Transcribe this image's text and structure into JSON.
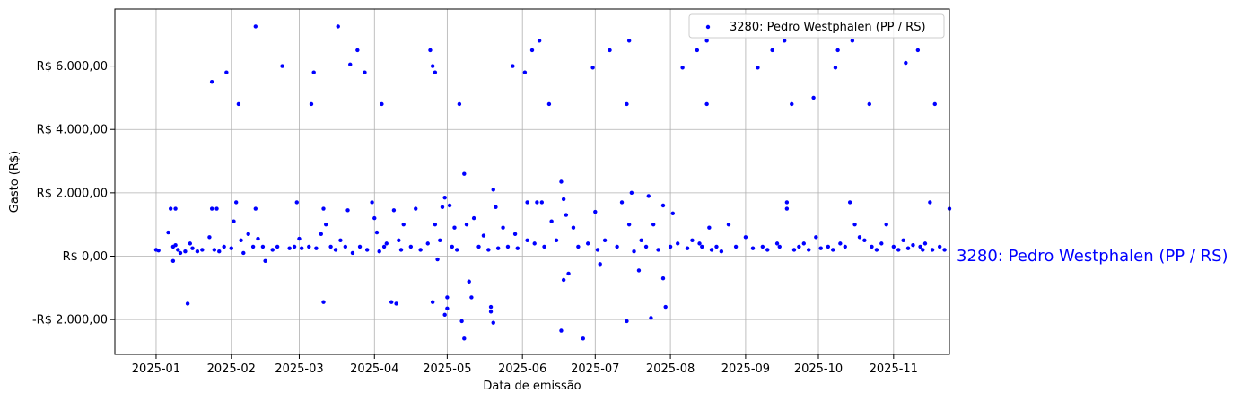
{
  "chart_data": {
    "type": "scatter",
    "xlabel": "Data de emissão",
    "ylabel": "Gasto (R$)",
    "xlim": [
      "2024-12-15",
      "2025-11-24"
    ],
    "ylim": [
      -3100,
      7800
    ],
    "grid": true,
    "legend_position": "top-right",
    "side_label": "3280: Pedro Westphalen (PP / RS)",
    "x_ticks": [
      "2025-01",
      "2025-02",
      "2025-03",
      "2025-04",
      "2025-05",
      "2025-06",
      "2025-07",
      "2025-08",
      "2025-09",
      "2025-10",
      "2025-11"
    ],
    "y_ticks": [
      {
        "value": -2000,
        "label": "-R$ 2.000,00"
      },
      {
        "value": 0,
        "label": "R$ 0,00"
      },
      {
        "value": 2000,
        "label": "R$ 2.000,00"
      },
      {
        "value": 4000,
        "label": "R$ 4.000,00"
      },
      {
        "value": 6000,
        "label": "R$ 6.000,00"
      }
    ],
    "series": [
      {
        "name": "3280: Pedro Westphalen (PP / RS)",
        "color": "#0000ff",
        "points": [
          [
            "2025-01-01",
            200
          ],
          [
            "2025-01-02",
            180
          ],
          [
            "2025-01-06",
            750
          ],
          [
            "2025-01-07",
            1500
          ],
          [
            "2025-01-08",
            300
          ],
          [
            "2025-01-08",
            -150
          ],
          [
            "2025-01-09",
            1500
          ],
          [
            "2025-01-09",
            350
          ],
          [
            "2025-01-10",
            200
          ],
          [
            "2025-01-11",
            100
          ],
          [
            "2025-01-13",
            150
          ],
          [
            "2025-01-14",
            -1500
          ],
          [
            "2025-01-15",
            400
          ],
          [
            "2025-01-16",
            250
          ],
          [
            "2025-01-18",
            150
          ],
          [
            "2025-01-20",
            200
          ],
          [
            "2025-01-23",
            600
          ],
          [
            "2025-01-24",
            1500
          ],
          [
            "2025-01-24",
            5500
          ],
          [
            "2025-01-25",
            200
          ],
          [
            "2025-01-26",
            1500
          ],
          [
            "2025-01-27",
            150
          ],
          [
            "2025-01-29",
            300
          ],
          [
            "2025-01-30",
            5800
          ],
          [
            "2025-02-01",
            250
          ],
          [
            "2025-02-02",
            1100
          ],
          [
            "2025-02-03",
            1700
          ],
          [
            "2025-02-04",
            4800
          ],
          [
            "2025-02-05",
            500
          ],
          [
            "2025-02-06",
            100
          ],
          [
            "2025-02-08",
            700
          ],
          [
            "2025-02-10",
            300
          ],
          [
            "2025-02-11",
            1500
          ],
          [
            "2025-02-11",
            7250
          ],
          [
            "2025-02-12",
            550
          ],
          [
            "2025-02-14",
            300
          ],
          [
            "2025-02-15",
            -150
          ],
          [
            "2025-02-18",
            200
          ],
          [
            "2025-02-20",
            300
          ],
          [
            "2025-02-22",
            6000
          ],
          [
            "2025-02-25",
            250
          ],
          [
            "2025-02-27",
            300
          ],
          [
            "2025-02-28",
            1700
          ],
          [
            "2025-03-01",
            550
          ],
          [
            "2025-03-02",
            250
          ],
          [
            "2025-03-05",
            300
          ],
          [
            "2025-03-06",
            4800
          ],
          [
            "2025-03-07",
            5800
          ],
          [
            "2025-03-08",
            250
          ],
          [
            "2025-03-10",
            700
          ],
          [
            "2025-03-11",
            1500
          ],
          [
            "2025-03-11",
            -1450
          ],
          [
            "2025-03-12",
            1000
          ],
          [
            "2025-03-14",
            300
          ],
          [
            "2025-03-16",
            200
          ],
          [
            "2025-03-17",
            7250
          ],
          [
            "2025-03-18",
            500
          ],
          [
            "2025-03-20",
            300
          ],
          [
            "2025-03-21",
            1450
          ],
          [
            "2025-03-22",
            6050
          ],
          [
            "2025-03-23",
            100
          ],
          [
            "2025-03-25",
            6500
          ],
          [
            "2025-03-26",
            300
          ],
          [
            "2025-03-28",
            5800
          ],
          [
            "2025-03-29",
            200
          ],
          [
            "2025-03-31",
            1700
          ],
          [
            "2025-04-01",
            1200
          ],
          [
            "2025-04-02",
            750
          ],
          [
            "2025-04-03",
            150
          ],
          [
            "2025-04-04",
            4800
          ],
          [
            "2025-04-05",
            300
          ],
          [
            "2025-04-06",
            400
          ],
          [
            "2025-04-08",
            -1450
          ],
          [
            "2025-04-09",
            1450
          ],
          [
            "2025-04-10",
            -1500
          ],
          [
            "2025-04-11",
            500
          ],
          [
            "2025-04-12",
            200
          ],
          [
            "2025-04-13",
            1000
          ],
          [
            "2025-04-16",
            300
          ],
          [
            "2025-04-18",
            1500
          ],
          [
            "2025-04-20",
            200
          ],
          [
            "2025-04-23",
            400
          ],
          [
            "2025-04-24",
            6500
          ],
          [
            "2025-04-25",
            -1450
          ],
          [
            "2025-04-25",
            6000
          ],
          [
            "2025-04-26",
            5800
          ],
          [
            "2025-04-26",
            1000
          ],
          [
            "2025-04-27",
            -100
          ],
          [
            "2025-04-28",
            500
          ],
          [
            "2025-04-29",
            1550
          ],
          [
            "2025-04-30",
            -1850
          ],
          [
            "2025-04-30",
            1850
          ],
          [
            "2025-05-01",
            -1650
          ],
          [
            "2025-05-01",
            -1300
          ],
          [
            "2025-05-02",
            1600
          ],
          [
            "2025-05-03",
            300
          ],
          [
            "2025-05-04",
            900
          ],
          [
            "2025-05-05",
            200
          ],
          [
            "2025-05-06",
            4800
          ],
          [
            "2025-05-07",
            -2050
          ],
          [
            "2025-05-08",
            -2600
          ],
          [
            "2025-05-08",
            2600
          ],
          [
            "2025-05-09",
            1000
          ],
          [
            "2025-05-10",
            -800
          ],
          [
            "2025-05-11",
            -1300
          ],
          [
            "2025-05-12",
            1200
          ],
          [
            "2025-05-14",
            300
          ],
          [
            "2025-05-16",
            650
          ],
          [
            "2025-05-18",
            200
          ],
          [
            "2025-05-19",
            -1600
          ],
          [
            "2025-05-19",
            -1750
          ],
          [
            "2025-05-20",
            -2100
          ],
          [
            "2025-05-20",
            2100
          ],
          [
            "2025-05-21",
            1550
          ],
          [
            "2025-05-22",
            250
          ],
          [
            "2025-05-24",
            900
          ],
          [
            "2025-05-26",
            300
          ],
          [
            "2025-05-28",
            6000
          ],
          [
            "2025-05-29",
            700
          ],
          [
            "2025-05-30",
            250
          ],
          [
            "2025-06-02",
            5800
          ],
          [
            "2025-06-03",
            1700
          ],
          [
            "2025-06-03",
            500
          ],
          [
            "2025-06-05",
            6500
          ],
          [
            "2025-06-06",
            400
          ],
          [
            "2025-06-07",
            1700
          ],
          [
            "2025-06-08",
            6800
          ],
          [
            "2025-06-09",
            1700
          ],
          [
            "2025-06-10",
            300
          ],
          [
            "2025-06-12",
            4800
          ],
          [
            "2025-06-13",
            1100
          ],
          [
            "2025-06-15",
            500
          ],
          [
            "2025-06-17",
            -2350
          ],
          [
            "2025-06-17",
            2350
          ],
          [
            "2025-06-18",
            -750
          ],
          [
            "2025-06-18",
            1800
          ],
          [
            "2025-06-19",
            1300
          ],
          [
            "2025-06-20",
            -550
          ],
          [
            "2025-06-22",
            900
          ],
          [
            "2025-06-24",
            300
          ],
          [
            "2025-06-26",
            -2600
          ],
          [
            "2025-06-28",
            400
          ],
          [
            "2025-06-30",
            5950
          ],
          [
            "2025-07-01",
            1400
          ],
          [
            "2025-07-02",
            200
          ],
          [
            "2025-07-03",
            -250
          ],
          [
            "2025-07-05",
            500
          ],
          [
            "2025-07-07",
            6500
          ],
          [
            "2025-07-10",
            300
          ],
          [
            "2025-07-12",
            1700
          ],
          [
            "2025-07-14",
            4800
          ],
          [
            "2025-07-14",
            -2050
          ],
          [
            "2025-07-15",
            6800
          ],
          [
            "2025-07-15",
            1000
          ],
          [
            "2025-07-16",
            2000
          ],
          [
            "2025-07-17",
            150
          ],
          [
            "2025-07-19",
            -450
          ],
          [
            "2025-07-20",
            500
          ],
          [
            "2025-07-22",
            300
          ],
          [
            "2025-07-23",
            1900
          ],
          [
            "2025-07-24",
            -1950
          ],
          [
            "2025-07-25",
            1000
          ],
          [
            "2025-07-27",
            200
          ],
          [
            "2025-07-29",
            -700
          ],
          [
            "2025-07-29",
            1600
          ],
          [
            "2025-07-30",
            -1600
          ],
          [
            "2025-08-01",
            300
          ],
          [
            "2025-08-02",
            1350
          ],
          [
            "2025-08-04",
            400
          ],
          [
            "2025-08-06",
            5950
          ],
          [
            "2025-08-08",
            250
          ],
          [
            "2025-08-10",
            500
          ],
          [
            "2025-08-12",
            6500
          ],
          [
            "2025-08-13",
            400
          ],
          [
            "2025-08-14",
            300
          ],
          [
            "2025-08-16",
            6800
          ],
          [
            "2025-08-16",
            4800
          ],
          [
            "2025-08-17",
            900
          ],
          [
            "2025-08-18",
            200
          ],
          [
            "2025-08-20",
            300
          ],
          [
            "2025-08-22",
            150
          ],
          [
            "2025-08-25",
            1000
          ],
          [
            "2025-08-28",
            300
          ],
          [
            "2025-09-01",
            600
          ],
          [
            "2025-09-04",
            250
          ],
          [
            "2025-09-06",
            5950
          ],
          [
            "2025-09-08",
            300
          ],
          [
            "2025-09-10",
            200
          ],
          [
            "2025-09-12",
            6500
          ],
          [
            "2025-09-14",
            400
          ],
          [
            "2025-09-15",
            300
          ],
          [
            "2025-09-17",
            6800
          ],
          [
            "2025-09-18",
            1500
          ],
          [
            "2025-09-18",
            1700
          ],
          [
            "2025-09-20",
            4800
          ],
          [
            "2025-09-21",
            200
          ],
          [
            "2025-09-23",
            300
          ],
          [
            "2025-09-25",
            400
          ],
          [
            "2025-09-27",
            200
          ],
          [
            "2025-09-29",
            5000
          ],
          [
            "2025-09-30",
            600
          ],
          [
            "2025-10-02",
            250
          ],
          [
            "2025-10-05",
            300
          ],
          [
            "2025-10-07",
            200
          ],
          [
            "2025-10-08",
            5950
          ],
          [
            "2025-10-09",
            6500
          ],
          [
            "2025-10-10",
            400
          ],
          [
            "2025-10-12",
            300
          ],
          [
            "2025-10-14",
            1700
          ],
          [
            "2025-10-15",
            6800
          ],
          [
            "2025-10-16",
            1000
          ],
          [
            "2025-10-18",
            600
          ],
          [
            "2025-10-20",
            500
          ],
          [
            "2025-10-22",
            4800
          ],
          [
            "2025-10-23",
            300
          ],
          [
            "2025-10-25",
            200
          ],
          [
            "2025-10-27",
            400
          ],
          [
            "2025-10-29",
            1000
          ],
          [
            "2025-11-01",
            300
          ],
          [
            "2025-11-03",
            200
          ],
          [
            "2025-11-05",
            500
          ],
          [
            "2025-11-06",
            6100
          ],
          [
            "2025-11-07",
            250
          ],
          [
            "2025-11-09",
            350
          ],
          [
            "2025-11-11",
            6500
          ],
          [
            "2025-11-12",
            300
          ],
          [
            "2025-11-13",
            200
          ],
          [
            "2025-11-14",
            400
          ],
          [
            "2025-11-16",
            1700
          ],
          [
            "2025-11-17",
            200
          ],
          [
            "2025-11-18",
            4800
          ],
          [
            "2025-11-20",
            300
          ],
          [
            "2025-11-22",
            200
          ],
          [
            "2025-11-24",
            1500
          ]
        ]
      }
    ]
  }
}
